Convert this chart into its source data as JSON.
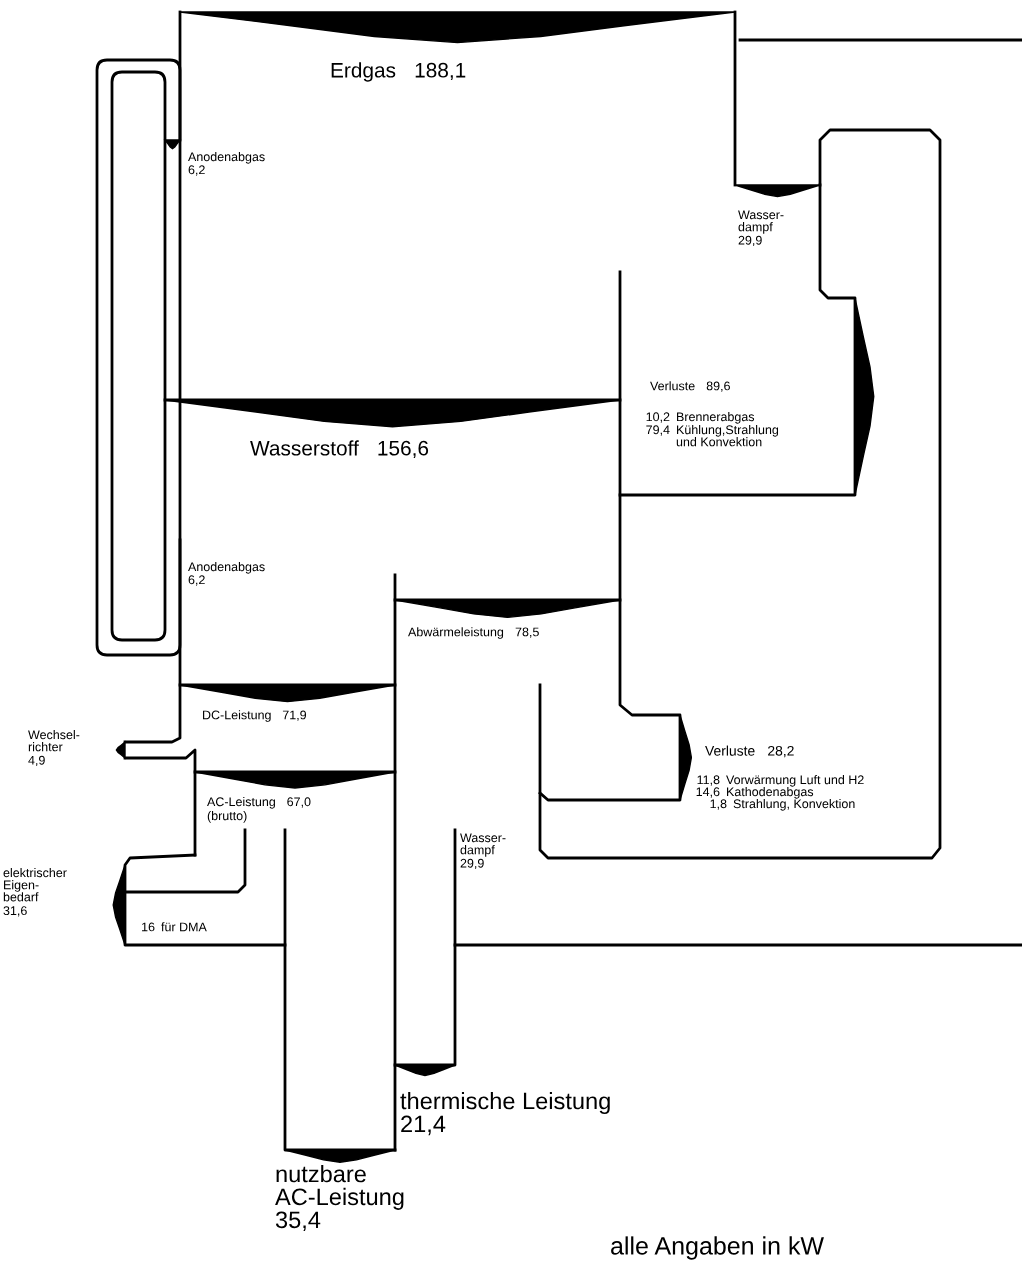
{
  "chart_data": {
    "type": "other",
    "categories": [
      "Erdgas",
      "Anodenabgas",
      "Wasser-\ndampf",
      "Verluste",
      "Brennerabgas",
      "Kühlung,Strahlung\nund Konvektion",
      "Wasserstoff",
      "Anodenabgas",
      "Abwärmeleistung",
      "DC-Leistung",
      "Wechsel-\nrichter",
      "AC-Leistung",
      "Verluste",
      "Vorwärmung Luft und H2",
      "Kathodenabgas",
      "Strahlung, Konvektion",
      "Wasser-\ndampf",
      "elektrischer\nEigen-\nbedarf",
      "für DMA",
      "thermische Leistung",
      "nutzbare\nAC-Leistung"
    ],
    "values": [
      188.1,
      6.2,
      29.9,
      89.6,
      10.2,
      79.4,
      156.6,
      6.2,
      78.5,
      71.9,
      4.9,
      67.0,
      28.2,
      11.8,
      14.6,
      1.8,
      29.9,
      31.6,
      16,
      21.4,
      35.4
    ],
    "value_labels": [
      "188,1",
      "6,2",
      "29,9",
      "89,6",
      "10,2",
      "79,4",
      "156,6",
      "6,2",
      "78,5",
      "71,9",
      "4,9",
      "67,0",
      "28,2",
      "11,8",
      "14,6",
      "1,8",
      "29,9",
      "31,6",
      "16",
      "21,4",
      "35,4"
    ],
    "annotations": [
      "(brutto)",
      "alle Angaben in kW"
    ]
  }
}
